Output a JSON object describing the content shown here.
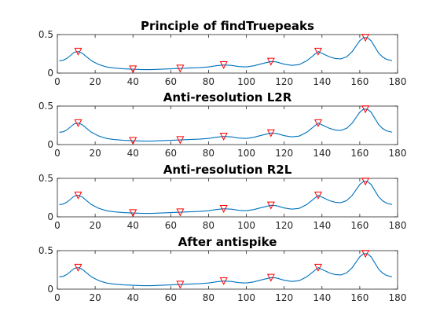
{
  "chart_data": [
    {
      "type": "line",
      "title": "Principle of findTruepeaks",
      "xlim": [
        0,
        180
      ],
      "ylim": [
        0,
        0.5
      ],
      "xticks": [
        0,
        20,
        40,
        60,
        80,
        100,
        120,
        140,
        160,
        180
      ],
      "yticks": [
        0,
        0.5
      ],
      "grid": false,
      "series": [
        {
          "color": "#0072BD",
          "x": [
            1,
            3,
            5,
            7,
            9,
            11,
            13,
            15,
            18,
            22,
            26,
            30,
            35,
            40,
            45,
            50,
            55,
            60,
            65,
            70,
            75,
            80,
            84,
            88,
            92,
            96,
            100,
            104,
            108,
            113,
            116,
            120,
            124,
            128,
            132,
            135,
            138,
            141,
            144,
            147,
            150,
            153,
            156,
            158,
            160,
            162,
            164,
            166,
            168,
            170,
            172,
            174,
            177
          ],
          "y": [
            0.16,
            0.165,
            0.19,
            0.23,
            0.27,
            0.28,
            0.26,
            0.22,
            0.16,
            0.11,
            0.08,
            0.065,
            0.055,
            0.05,
            0.045,
            0.045,
            0.05,
            0.055,
            0.06,
            0.065,
            0.07,
            0.08,
            0.095,
            0.105,
            0.1,
            0.085,
            0.08,
            0.095,
            0.12,
            0.15,
            0.145,
            0.115,
            0.1,
            0.11,
            0.16,
            0.22,
            0.28,
            0.245,
            0.21,
            0.19,
            0.185,
            0.21,
            0.28,
            0.35,
            0.42,
            0.46,
            0.46,
            0.42,
            0.34,
            0.26,
            0.21,
            0.18,
            0.16
          ]
        }
      ],
      "markers": {
        "color": "#FF0000",
        "x": [
          11,
          40,
          65,
          88,
          113,
          138,
          163
        ],
        "y": [
          0.28,
          0.05,
          0.06,
          0.105,
          0.15,
          0.28,
          0.46
        ]
      }
    },
    {
      "type": "line",
      "title": "Anti-resolution L2R",
      "xlim": [
        0,
        180
      ],
      "ylim": [
        0,
        0.5
      ],
      "xticks": [
        0,
        20,
        40,
        60,
        80,
        100,
        120,
        140,
        160,
        180
      ],
      "yticks": [
        0,
        0.5
      ],
      "grid": false,
      "series": [
        {
          "color": "#0072BD",
          "x": [
            1,
            3,
            5,
            7,
            9,
            11,
            13,
            15,
            18,
            22,
            26,
            30,
            35,
            40,
            45,
            50,
            55,
            60,
            65,
            70,
            75,
            80,
            84,
            88,
            92,
            96,
            100,
            104,
            108,
            113,
            116,
            120,
            124,
            128,
            132,
            135,
            138,
            141,
            144,
            147,
            150,
            153,
            156,
            158,
            160,
            162,
            164,
            166,
            168,
            170,
            172,
            174,
            177
          ],
          "y": [
            0.16,
            0.165,
            0.19,
            0.23,
            0.27,
            0.28,
            0.26,
            0.22,
            0.16,
            0.11,
            0.08,
            0.065,
            0.055,
            0.05,
            0.045,
            0.045,
            0.05,
            0.055,
            0.06,
            0.065,
            0.07,
            0.08,
            0.095,
            0.105,
            0.1,
            0.085,
            0.08,
            0.095,
            0.12,
            0.15,
            0.145,
            0.115,
            0.1,
            0.11,
            0.16,
            0.22,
            0.28,
            0.245,
            0.21,
            0.19,
            0.185,
            0.21,
            0.28,
            0.35,
            0.42,
            0.46,
            0.46,
            0.42,
            0.34,
            0.26,
            0.21,
            0.18,
            0.16
          ]
        }
      ],
      "markers": {
        "color": "#FF0000",
        "x": [
          11,
          40,
          65,
          88,
          113,
          138,
          163
        ],
        "y": [
          0.28,
          0.05,
          0.06,
          0.105,
          0.15,
          0.28,
          0.46
        ]
      }
    },
    {
      "type": "line",
      "title": "Anti-resolution R2L",
      "xlim": [
        0,
        180
      ],
      "ylim": [
        0,
        0.5
      ],
      "xticks": [
        0,
        20,
        40,
        60,
        80,
        100,
        120,
        140,
        160,
        180
      ],
      "yticks": [
        0,
        0.5
      ],
      "grid": false,
      "series": [
        {
          "color": "#0072BD",
          "x": [
            1,
            3,
            5,
            7,
            9,
            11,
            13,
            15,
            18,
            22,
            26,
            30,
            35,
            40,
            45,
            50,
            55,
            60,
            65,
            70,
            75,
            80,
            84,
            88,
            92,
            96,
            100,
            104,
            108,
            113,
            116,
            120,
            124,
            128,
            132,
            135,
            138,
            141,
            144,
            147,
            150,
            153,
            156,
            158,
            160,
            162,
            164,
            166,
            168,
            170,
            172,
            174,
            177
          ],
          "y": [
            0.16,
            0.165,
            0.19,
            0.23,
            0.27,
            0.28,
            0.26,
            0.22,
            0.16,
            0.11,
            0.08,
            0.065,
            0.055,
            0.05,
            0.045,
            0.045,
            0.05,
            0.055,
            0.06,
            0.065,
            0.07,
            0.08,
            0.095,
            0.105,
            0.1,
            0.085,
            0.08,
            0.095,
            0.12,
            0.15,
            0.145,
            0.115,
            0.1,
            0.11,
            0.16,
            0.22,
            0.28,
            0.245,
            0.21,
            0.19,
            0.185,
            0.21,
            0.28,
            0.35,
            0.42,
            0.46,
            0.46,
            0.42,
            0.34,
            0.26,
            0.21,
            0.18,
            0.16
          ]
        }
      ],
      "markers": {
        "color": "#FF0000",
        "x": [
          11,
          40,
          65,
          88,
          113,
          138,
          163
        ],
        "y": [
          0.28,
          0.05,
          0.06,
          0.105,
          0.15,
          0.28,
          0.46
        ]
      }
    },
    {
      "type": "line",
      "title": "After antispike",
      "xlim": [
        0,
        180
      ],
      "ylim": [
        0,
        0.5
      ],
      "xticks": [
        0,
        20,
        40,
        60,
        80,
        100,
        120,
        140,
        160,
        180
      ],
      "yticks": [
        0,
        0.5
      ],
      "grid": false,
      "series": [
        {
          "color": "#0072BD",
          "x": [
            1,
            3,
            5,
            7,
            9,
            11,
            13,
            15,
            18,
            22,
            26,
            30,
            35,
            40,
            45,
            50,
            55,
            60,
            65,
            70,
            75,
            80,
            84,
            88,
            92,
            96,
            100,
            104,
            108,
            113,
            116,
            120,
            124,
            128,
            132,
            135,
            138,
            141,
            144,
            147,
            150,
            153,
            156,
            158,
            160,
            162,
            164,
            166,
            168,
            170,
            172,
            174,
            177
          ],
          "y": [
            0.16,
            0.165,
            0.19,
            0.23,
            0.27,
            0.28,
            0.26,
            0.22,
            0.16,
            0.11,
            0.08,
            0.065,
            0.055,
            0.05,
            0.045,
            0.045,
            0.05,
            0.055,
            0.06,
            0.065,
            0.07,
            0.08,
            0.095,
            0.105,
            0.1,
            0.085,
            0.08,
            0.095,
            0.12,
            0.15,
            0.145,
            0.115,
            0.1,
            0.11,
            0.16,
            0.22,
            0.28,
            0.245,
            0.21,
            0.19,
            0.185,
            0.21,
            0.28,
            0.35,
            0.42,
            0.46,
            0.46,
            0.42,
            0.34,
            0.26,
            0.21,
            0.18,
            0.16
          ]
        }
      ],
      "markers": {
        "color": "#FF0000",
        "x": [
          11,
          65,
          88,
          113,
          138,
          163
        ],
        "y": [
          0.28,
          0.06,
          0.105,
          0.15,
          0.28,
          0.46
        ]
      }
    }
  ]
}
